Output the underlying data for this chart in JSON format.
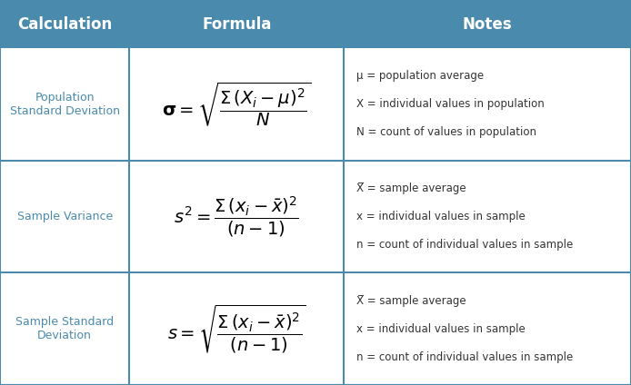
{
  "header_bg": "#4a8aac",
  "header_text_color": "#ffffff",
  "cell_bg": "#ffffff",
  "border_color": "#4a8aac",
  "calc_text_color": "#4a8aac",
  "notes_text_color": "#333333",
  "formula_text_color": "#000000",
  "header_labels": [
    "Calculation",
    "Formula",
    "Notes"
  ],
  "col_starts": [
    0.0,
    0.205,
    0.545
  ],
  "col_ends": [
    0.205,
    0.545,
    1.0
  ],
  "row_tops": [
    1.0,
    0.875,
    0.583,
    0.292
  ],
  "row_bottoms": [
    0.875,
    0.583,
    0.292,
    0.0
  ],
  "rows": [
    {
      "calc": "Population\nStandard Deviation",
      "notes": [
        "μ = population average",
        "X = individual values in population",
        "N = count of values in population"
      ]
    },
    {
      "calc": "Sample Variance",
      "notes": [
        "X̅ = sample average",
        "x = individual values in sample",
        "n = count of individual values in sample"
      ]
    },
    {
      "calc": "Sample Standard\nDeviation",
      "notes": [
        "X̅ = sample average",
        "x = individual values in sample",
        "n = count of individual values in sample"
      ]
    }
  ]
}
